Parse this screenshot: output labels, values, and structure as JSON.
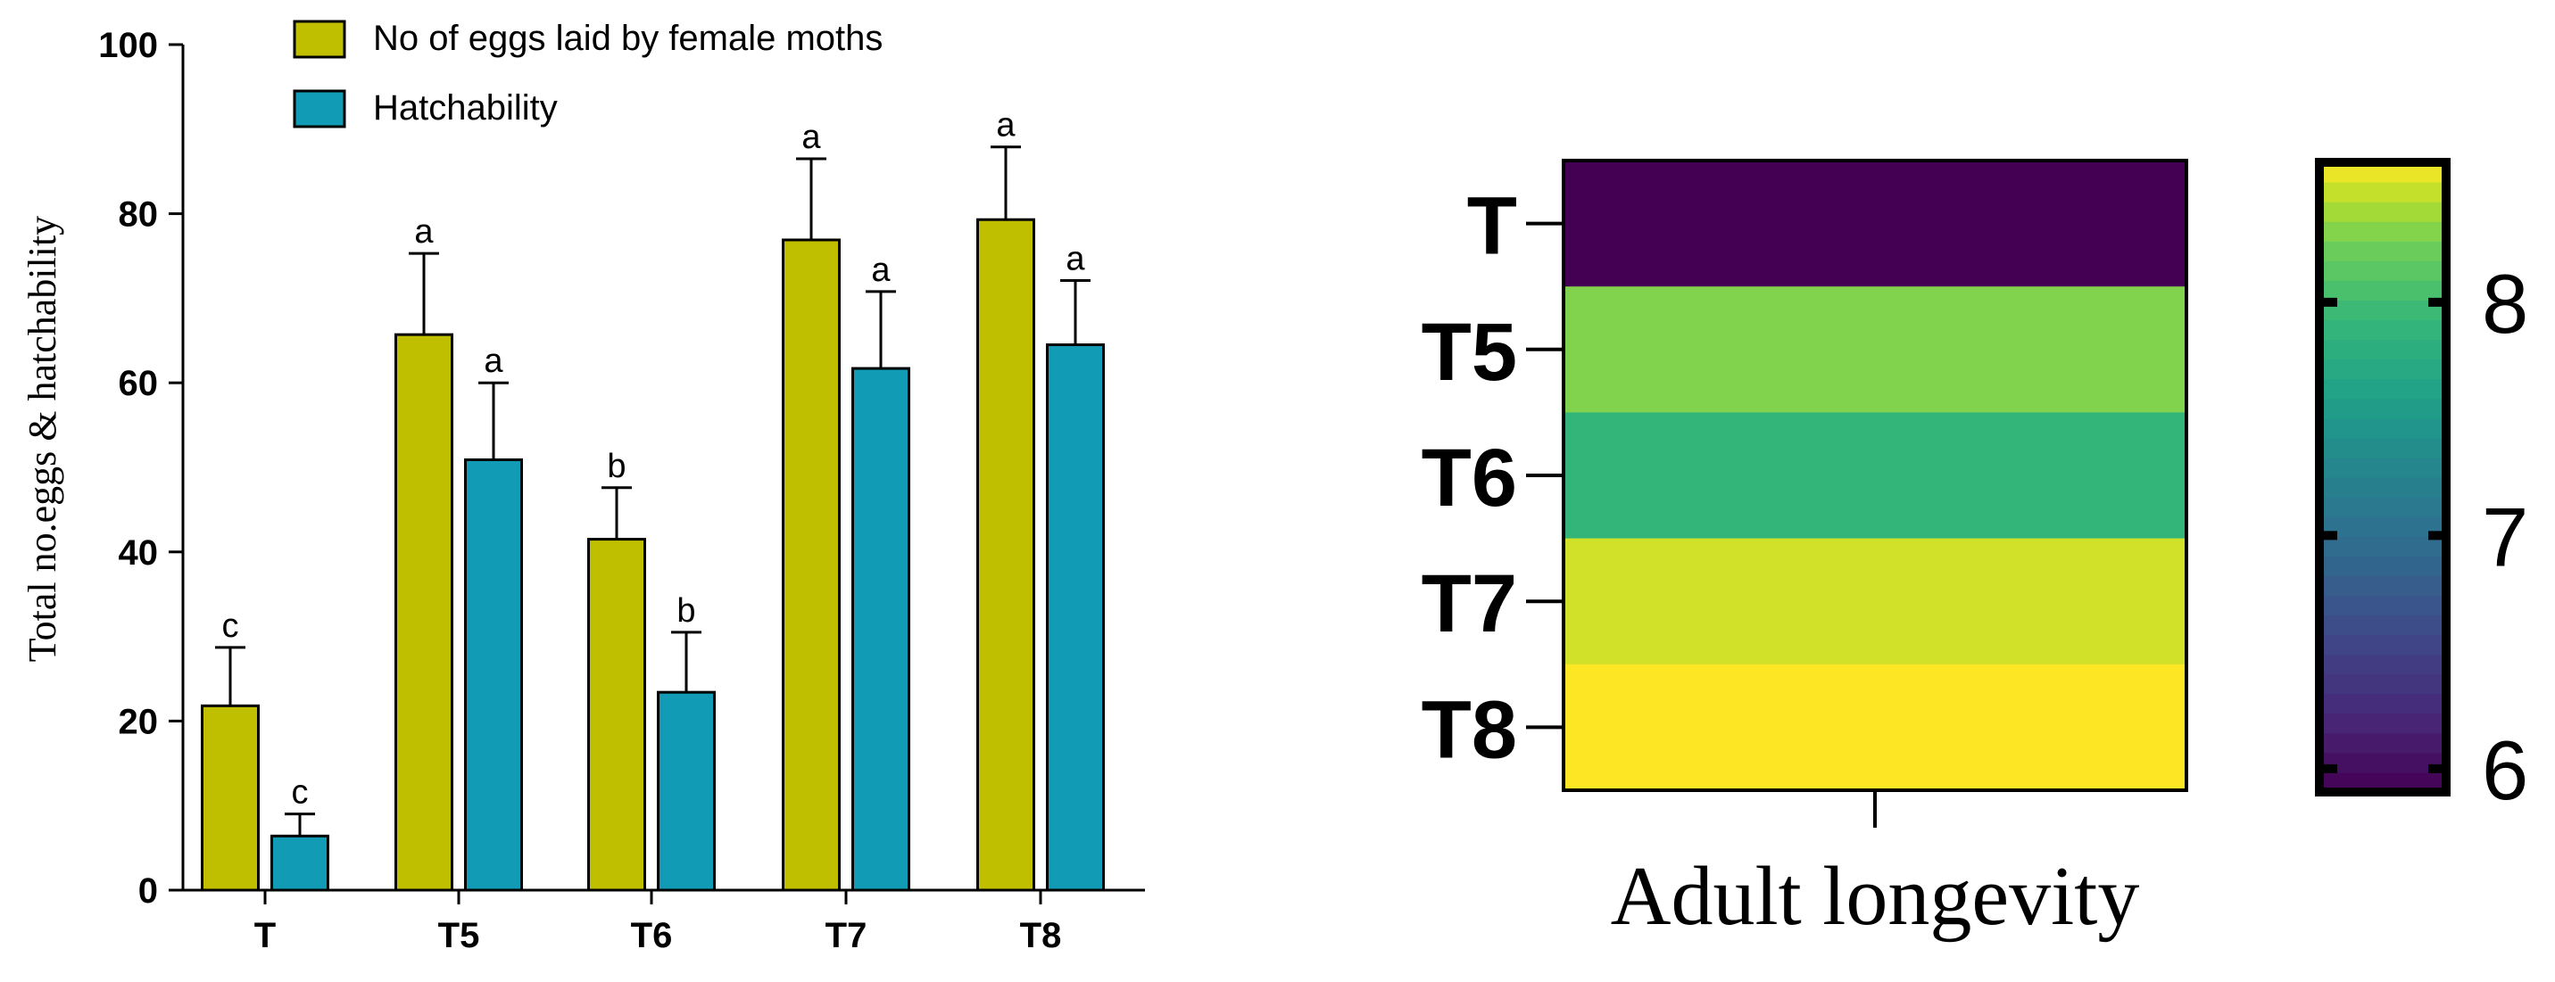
{
  "chart_data": [
    {
      "type": "bar",
      "title": "",
      "xlabel": "",
      "ylabel": "Total no.eggs & hatchability",
      "ylim": [
        0,
        100
      ],
      "yticks": [
        "0",
        "20",
        "40",
        "60",
        "80",
        "100"
      ],
      "categories": [
        "T",
        "T5",
        "T6",
        "T7",
        "T8"
      ],
      "legend_position": "top-center",
      "series": [
        {
          "name": "No of eggs laid by female moths",
          "color": "#bfbf00",
          "values": [
            21.8,
            65.7,
            41.5,
            76.9,
            79.3
          ],
          "errors": [
            6.9,
            9.6,
            6.1,
            9.6,
            8.6
          ],
          "letters": [
            "c",
            "a",
            "b",
            "a",
            "a"
          ]
        },
        {
          "name": "Hatchability",
          "color": "#129bb4",
          "values": [
            6.4,
            50.9,
            23.4,
            61.7,
            64.5
          ],
          "errors": [
            2.6,
            9.1,
            7.1,
            9.1,
            7.6
          ],
          "letters": [
            "c",
            "a",
            "b",
            "a",
            "a"
          ]
        }
      ]
    },
    {
      "type": "heatmap",
      "title": "",
      "xlabel": "Adult longevity",
      "rows": [
        "T",
        "T5",
        "T6",
        "T7",
        "T8"
      ],
      "columns": [
        "Adult longevity"
      ],
      "values": [
        5.9,
        8.3,
        7.9,
        8.5,
        8.6
      ],
      "colorbar": {
        "min": 5.9,
        "max": 8.6,
        "ticks": [
          6,
          7,
          8
        ],
        "tick_labels": [
          "6",
          "7",
          "8"
        ],
        "colormap": "viridis"
      }
    }
  ]
}
